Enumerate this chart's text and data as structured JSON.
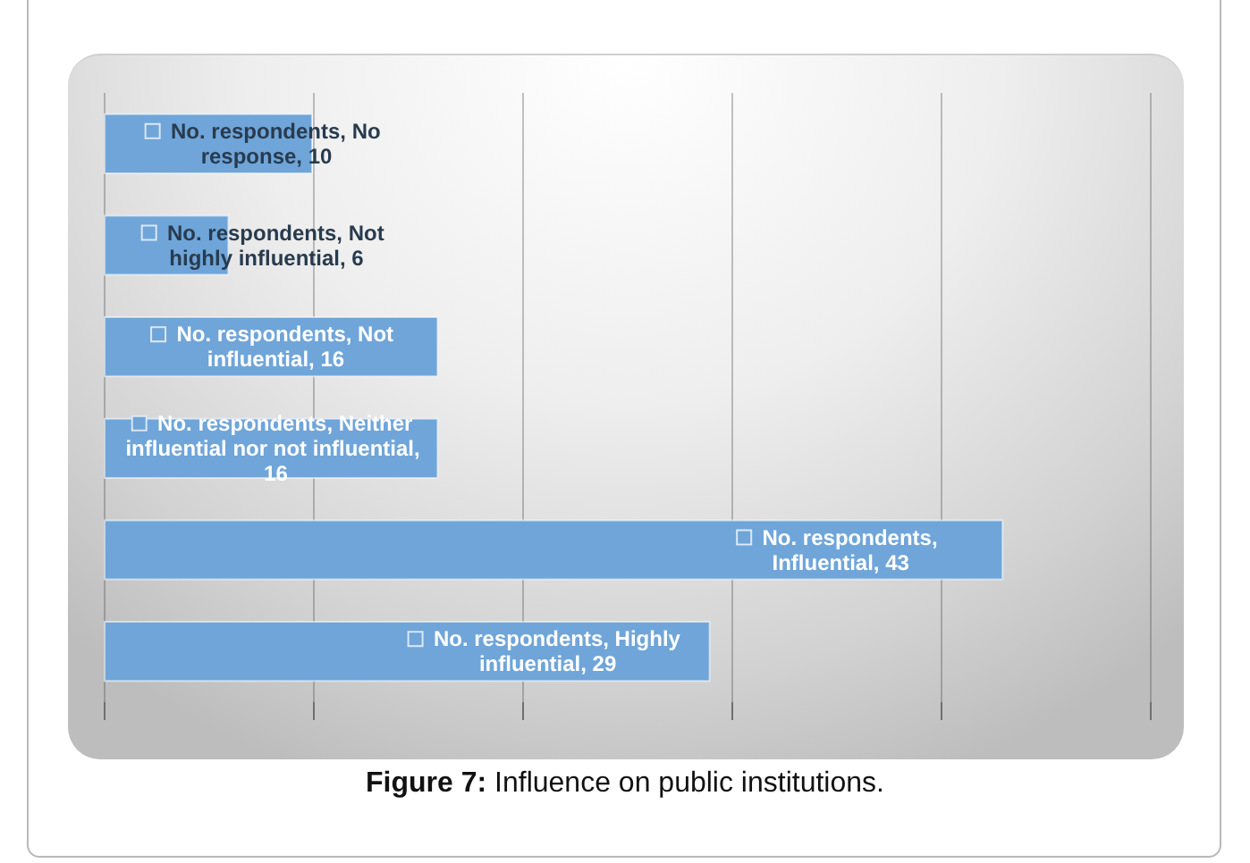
{
  "chart_data": {
    "type": "bar",
    "orientation": "horizontal",
    "categories": [
      null,
      null,
      null,
      null,
      null,
      null
    ],
    "series": [
      {
        "color": "#6fa5d9",
        "values": [
          10,
          6,
          16,
          16,
          43,
          29
        ],
        "value_labels": [
          "No. respondents, No response, 10",
          "No. respondents, Not highly influential, 6",
          "No. respondents, Not influential, 16",
          "No. respondents, Neither influential nor not influential, 16",
          "No. respondents, Influential, 43",
          "No. respondents, Highly influential, 29"
        ]
      }
    ],
    "xlim": [
      0,
      50
    ],
    "xticks": [
      {
        "value": 0,
        "label": null
      },
      {
        "value": 10,
        "label": null
      },
      {
        "value": 20,
        "label": null
      },
      {
        "value": 30,
        "label": null
      },
      {
        "value": 40,
        "label": null
      },
      {
        "value": 50,
        "label": null
      }
    ],
    "grid": "x",
    "tick_labels": false,
    "annotations": [
      "Figure 7: Influence on public institutions."
    ]
  }
}
